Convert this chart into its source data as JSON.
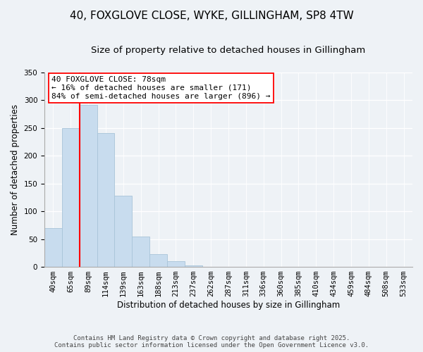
{
  "title": "40, FOXGLOVE CLOSE, WYKE, GILLINGHAM, SP8 4TW",
  "subtitle": "Size of property relative to detached houses in Gillingham",
  "xlabel": "Distribution of detached houses by size in Gillingham",
  "ylabel": "Number of detached properties",
  "bar_labels": [
    "40sqm",
    "65sqm",
    "89sqm",
    "114sqm",
    "139sqm",
    "163sqm",
    "188sqm",
    "213sqm",
    "237sqm",
    "262sqm",
    "287sqm",
    "311sqm",
    "336sqm",
    "360sqm",
    "385sqm",
    "410sqm",
    "434sqm",
    "459sqm",
    "484sqm",
    "508sqm",
    "533sqm"
  ],
  "bar_values": [
    70,
    250,
    291,
    241,
    128,
    54,
    23,
    10,
    3,
    0,
    0,
    0,
    0,
    0,
    0,
    0,
    0,
    0,
    0,
    0,
    0
  ],
  "bar_color": "#c8dcee",
  "bar_edge_color": "#a8c4d8",
  "ylim": [
    0,
    350
  ],
  "yticks": [
    0,
    50,
    100,
    150,
    200,
    250,
    300,
    350
  ],
  "vline_x": 2.0,
  "vline_color": "red",
  "annotation_line1": "40 FOXGLOVE CLOSE: 78sqm",
  "annotation_line2": "← 16% of detached houses are smaller (171)",
  "annotation_line3": "84% of semi-detached houses are larger (896) →",
  "footer_line1": "Contains HM Land Registry data © Crown copyright and database right 2025.",
  "footer_line2": "Contains public sector information licensed under the Open Government Licence v3.0.",
  "background_color": "#eef2f6",
  "title_fontsize": 11,
  "subtitle_fontsize": 9.5,
  "xlabel_fontsize": 8.5,
  "ylabel_fontsize": 8.5,
  "tick_fontsize": 7.5,
  "annotation_fontsize": 8,
  "footer_fontsize": 6.5
}
